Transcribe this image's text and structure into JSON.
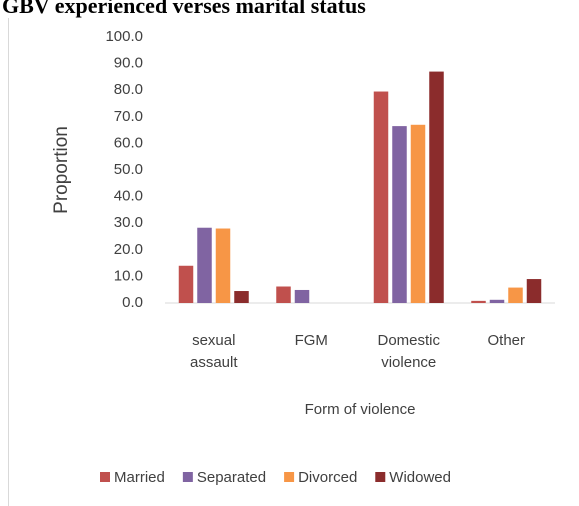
{
  "chart_data": {
    "type": "bar",
    "title": "GBV experienced verses marital status",
    "y_label": "Proportion",
    "x_label": "Form of violence",
    "categories": [
      "sexual assault",
      "FGM",
      "Domestic violence",
      "Other"
    ],
    "series": [
      {
        "name": "Married",
        "color": "#c0504d",
        "values": [
          14.0,
          6.2,
          79.5,
          0.8
        ]
      },
      {
        "name": "Separated",
        "color": "#8064a2",
        "values": [
          28.3,
          4.9,
          66.5,
          1.2
        ]
      },
      {
        "name": "Divorced",
        "color": "#f79646",
        "values": [
          28.0,
          0,
          67.0,
          5.8
        ]
      },
      {
        "name": "Widowed",
        "color": "#8b2c2c",
        "values": [
          4.5,
          0,
          87.0,
          9.0
        ]
      }
    ],
    "ylim": [
      0,
      100
    ],
    "yticks": [
      {
        "value": 0,
        "label": "0.0"
      },
      {
        "value": 10,
        "label": "10.0"
      },
      {
        "value": 20,
        "label": "20.0"
      },
      {
        "value": 30,
        "label": "30.0"
      },
      {
        "value": 40,
        "label": "40.0"
      },
      {
        "value": 50,
        "label": "50.0"
      },
      {
        "value": 60,
        "label": "60.0"
      },
      {
        "value": 70,
        "label": "70.0"
      },
      {
        "value": 80,
        "label": "80.0"
      },
      {
        "value": 90,
        "label": "90.0"
      },
      {
        "value": 100,
        "label": "100.0"
      }
    ],
    "legend": "bottom"
  }
}
